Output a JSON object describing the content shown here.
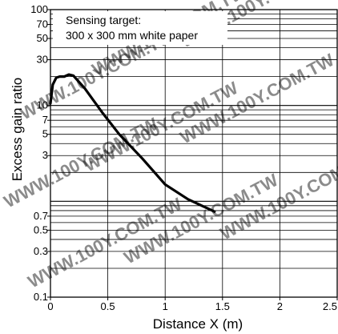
{
  "chart_data": {
    "type": "line",
    "title": "",
    "xlabel": "Distance X (m)",
    "ylabel": "Excess gain ratio",
    "annotation": [
      "Sensing target:",
      "300 x 300 mm white paper"
    ],
    "x_scale": "linear",
    "y_scale": "log",
    "xlim": [
      0,
      2.5
    ],
    "ylim": [
      0.1,
      100
    ],
    "x_ticks": [
      "0",
      "0.5",
      "1",
      "1.5",
      "2",
      "2.5"
    ],
    "y_ticks": [
      {
        "label": "100",
        "value": 100
      },
      {
        "label": "70",
        "value": 70
      },
      {
        "label": "50",
        "value": 50
      },
      {
        "label": "30",
        "value": 30
      },
      {
        "label": "10",
        "value": 10
      },
      {
        "label": "7",
        "value": 7
      },
      {
        "label": "5",
        "value": 5
      },
      {
        "label": "3",
        "value": 3
      },
      {
        "label": "0.7",
        "value": 0.7
      },
      {
        "label": "0.5",
        "value": 0.5
      },
      {
        "label": "0.3",
        "value": 0.3
      },
      {
        "label": "0.1",
        "value": 0.1
      }
    ],
    "grid": true,
    "series": [
      {
        "name": "",
        "color": "#000000",
        "x": [
          0.0,
          0.02,
          0.05,
          0.08,
          0.12,
          0.16,
          0.2,
          0.3,
          0.45,
          0.6,
          0.8,
          1.0,
          1.2,
          1.43
        ],
        "y": [
          10.5,
          16.5,
          19.5,
          20.0,
          20.0,
          21.0,
          20.5,
          15.0,
          8.5,
          5.0,
          2.8,
          1.5,
          1.05,
          0.78
        ]
      }
    ]
  },
  "watermark": "WWW.100Y.COM.TW"
}
